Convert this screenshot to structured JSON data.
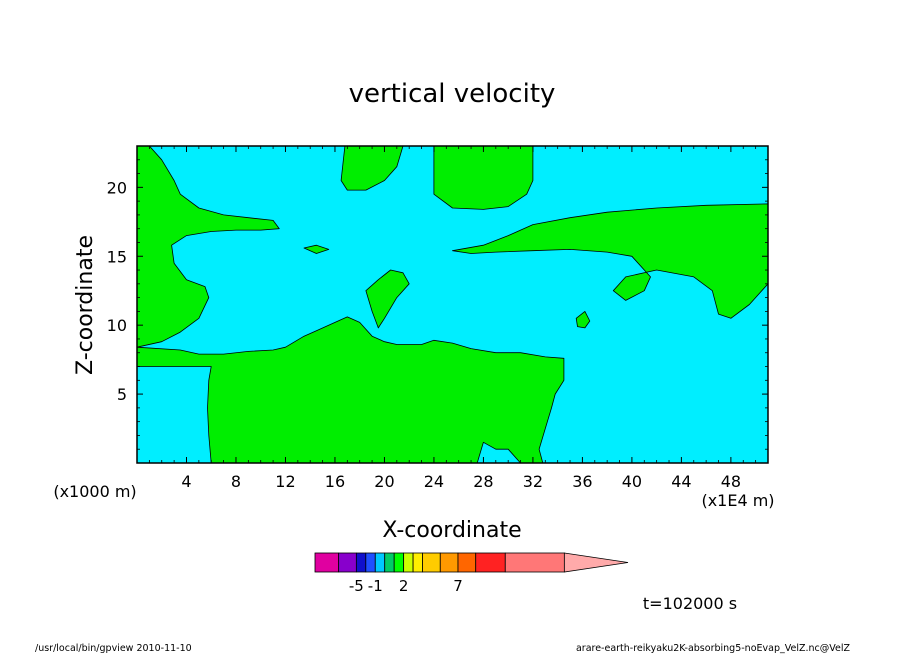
{
  "chart_data": {
    "type": "heatmap",
    "title": "vertical velocity",
    "xlabel": "X-coordinate",
    "ylabel": "Z-coordinate",
    "x_unit_label": "(x1E4 m)",
    "y_unit_label": "(x1000 m)",
    "xlim": [
      0,
      51
    ],
    "ylim": [
      0,
      23
    ],
    "x_ticks": [
      4,
      8,
      12,
      16,
      20,
      24,
      28,
      32,
      36,
      40,
      44,
      48
    ],
    "y_ticks": [
      5,
      10,
      15,
      20
    ],
    "colors": {
      "positive_region": "#00ee00",
      "negative_region": "#00eeff",
      "outline": "#000000"
    },
    "positive_regions": [
      [
        [
          0,
          8.4
        ],
        [
          3.5,
          8.2
        ],
        [
          5,
          7.9
        ],
        [
          7,
          7.9
        ],
        [
          9,
          8.1
        ],
        [
          11,
          8.2
        ],
        [
          12,
          8.4
        ],
        [
          13.5,
          9.2
        ],
        [
          14.5,
          9.6
        ],
        [
          16,
          10.2
        ],
        [
          17,
          10.6
        ],
        [
          18,
          10.2
        ],
        [
          19,
          9.2
        ],
        [
          20,
          8.8
        ],
        [
          21,
          8.6
        ],
        [
          23,
          8.6
        ],
        [
          24,
          8.9
        ],
        [
          25.5,
          8.7
        ],
        [
          27,
          8.3
        ],
        [
          29,
          8.0
        ],
        [
          31,
          8.0
        ],
        [
          33,
          7.7
        ],
        [
          34.5,
          7.6
        ],
        [
          34.5,
          6
        ],
        [
          33.8,
          5
        ],
        [
          33.5,
          4
        ],
        [
          33,
          2.5
        ],
        [
          32.5,
          1
        ],
        [
          32.8,
          0
        ],
        [
          31,
          0
        ],
        [
          30,
          1
        ],
        [
          29,
          1
        ],
        [
          28,
          1.5
        ],
        [
          27.5,
          0
        ],
        [
          6,
          0
        ],
        [
          5.8,
          2
        ],
        [
          5.7,
          4
        ],
        [
          5.8,
          6
        ],
        [
          6,
          7
        ],
        [
          0,
          7
        ]
      ],
      [
        [
          0,
          8.4
        ],
        [
          2,
          8.8
        ],
        [
          3.5,
          9.5
        ],
        [
          5,
          10.5
        ],
        [
          5.8,
          12
        ],
        [
          5.5,
          12.8
        ],
        [
          4,
          13.3
        ],
        [
          3,
          14.5
        ],
        [
          2.8,
          15.8
        ],
        [
          4,
          16.5
        ],
        [
          6,
          16.8
        ],
        [
          8,
          16.9
        ],
        [
          10,
          16.9
        ],
        [
          11.5,
          17
        ],
        [
          11,
          17.6
        ],
        [
          9,
          17.8
        ],
        [
          7,
          18
        ],
        [
          5,
          18.5
        ],
        [
          3.5,
          19.5
        ],
        [
          3,
          20.5
        ],
        [
          2,
          22
        ],
        [
          1,
          23
        ],
        [
          0,
          23
        ]
      ],
      [
        [
          16.8,
          23
        ],
        [
          16.5,
          20.5
        ],
        [
          17,
          19.8
        ],
        [
          18.5,
          19.8
        ],
        [
          20,
          20.5
        ],
        [
          21,
          21.5
        ],
        [
          21.5,
          23
        ]
      ],
      [
        [
          24,
          23
        ],
        [
          24,
          19.5
        ],
        [
          25.5,
          18.5
        ],
        [
          28,
          18.4
        ],
        [
          30,
          18.6
        ],
        [
          31.5,
          19.5
        ],
        [
          32,
          20.5
        ],
        [
          32,
          23
        ]
      ],
      [
        [
          25.5,
          15.4
        ],
        [
          28,
          15.8
        ],
        [
          30,
          16.5
        ],
        [
          32,
          17.3
        ],
        [
          35,
          17.8
        ],
        [
          38,
          18.2
        ],
        [
          42,
          18.5
        ],
        [
          46,
          18.7
        ],
        [
          51,
          18.8
        ],
        [
          51,
          13
        ],
        [
          49.5,
          11.5
        ],
        [
          48,
          10.5
        ],
        [
          47,
          10.8
        ],
        [
          46.5,
          12.5
        ],
        [
          45,
          13.5
        ],
        [
          42,
          14
        ],
        [
          39.5,
          13.5
        ],
        [
          38.5,
          12.5
        ],
        [
          39.5,
          11.8
        ],
        [
          41,
          12.5
        ],
        [
          41.5,
          13.5
        ],
        [
          40,
          15
        ],
        [
          38,
          15.3
        ],
        [
          35,
          15.5
        ],
        [
          32,
          15.4
        ],
        [
          29,
          15.3
        ],
        [
          27,
          15.2
        ]
      ],
      [
        [
          18.5,
          12.5
        ],
        [
          19.5,
          13.3
        ],
        [
          20.5,
          14
        ],
        [
          21.5,
          13.8
        ],
        [
          22,
          13
        ],
        [
          21,
          12
        ],
        [
          20,
          10.5
        ],
        [
          19.5,
          9.8
        ],
        [
          19,
          11
        ]
      ],
      [
        [
          35.5,
          10.5
        ],
        [
          36.2,
          11
        ],
        [
          36.6,
          10.3
        ],
        [
          36.2,
          9.8
        ],
        [
          35.6,
          9.9
        ]
      ],
      [
        [
          13.5,
          15.6
        ],
        [
          14.5,
          15.8
        ],
        [
          15.5,
          15.5
        ],
        [
          14.5,
          15.2
        ]
      ]
    ]
  },
  "annotations": {
    "timestamp": "t=102000 s",
    "program": "/usr/local/bin/gpview   2010-11-10",
    "source": "arare-earth-reikyaku2K-absorbing5-noEvap_VelZ.nc@VelZ"
  },
  "colorbar": {
    "colors": [
      "#e000a0",
      "#8800cc",
      "#1010cc",
      "#1f4fff",
      "#00c8ff",
      "#00cc66",
      "#00ff00",
      "#ccff00",
      "#ffee00",
      "#ffcc00",
      "#ff9900",
      "#ff6600",
      "#ff2222",
      "#ff7777",
      "#ffaaaa"
    ],
    "weights": [
      2,
      1.5,
      0.8,
      0.8,
      0.8,
      0.8,
      0.8,
      0.8,
      0.8,
      1.5,
      1.5,
      1.5,
      2.5,
      5,
      2
    ],
    "tick_labels": [
      {
        "label": "-5",
        "boundary": 2
      },
      {
        "label": "-1",
        "boundary": 4
      },
      {
        "label": "2",
        "boundary": 7
      },
      {
        "label": "7",
        "boundary": 11
      }
    ]
  }
}
